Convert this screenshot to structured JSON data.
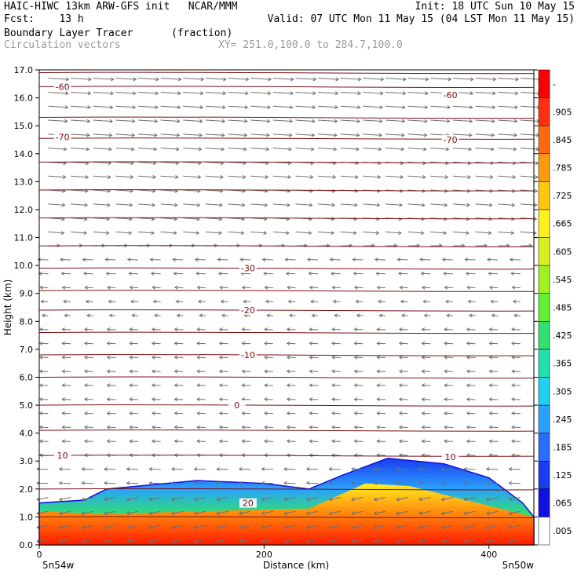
{
  "header": {
    "line1_left": "HAIC-HIWC 13km ARW-GFS init   NCAR/MMM",
    "line1_right": "Init: 18 UTC Sun 10 May 15",
    "line2_left": "Fcst:    13 h",
    "line2_right": "Valid: 07 UTC Mon 11 May 15 (04 LST Mon 11 May 15)",
    "line3_left": "Boundary Layer Tracer",
    "line3_mid": "(fraction)",
    "line4_left": "Circulation vectors",
    "line4_mid": "XY= 251.0,100.0 to 284.7,100.0"
  },
  "chart_data": {
    "type": "heatmap",
    "ylabel": "Height (km)",
    "xlabel": "Distance (km)",
    "x_left_label": "5n54w",
    "x_right_label": "5n50w",
    "xlim": [
      0,
      440
    ],
    "ylim": [
      0,
      17
    ],
    "x_ticks": [
      "0",
      "200",
      "400"
    ],
    "y_ticks": [
      "0.0",
      "1.0",
      "2.0",
      "3.0",
      "4.0",
      "5.0",
      "6.0",
      "7.0",
      "8.0",
      "9.0",
      "10.0",
      "11.0",
      "12.0",
      "13.0",
      "14.0",
      "15.0",
      "16.0",
      "17.0"
    ],
    "temperature_contours": [
      {
        "value": -60,
        "label": "-60",
        "heights_km": [
          16.4,
          16.3,
          16.2,
          16.1,
          16.2
        ]
      },
      {
        "value": -70,
        "label": "-70",
        "heights_km": [
          14.6,
          14.55,
          14.5,
          14.5,
          14.55
        ]
      },
      {
        "value": -30,
        "label": "-30",
        "heights_km": [
          9.9,
          9.9,
          9.95,
          9.9,
          9.9
        ]
      },
      {
        "value": -20,
        "label": "-20",
        "heights_km": [
          8.4,
          8.4,
          8.45,
          8.4,
          8.4
        ]
      },
      {
        "value": -10,
        "label": "-10",
        "heights_km": [
          6.8,
          6.8,
          6.85,
          6.8,
          6.8
        ]
      },
      {
        "value": 0,
        "label": "0",
        "heights_km": [
          5.0,
          5.0,
          5.1,
          5.0,
          5.0
        ]
      },
      {
        "value": 10,
        "label": "10",
        "heights_km": [
          3.2,
          3.2,
          3.1,
          3.15,
          3.1
        ]
      },
      {
        "value": 20,
        "label": "20",
        "heights_km": [
          1.5,
          1.45,
          1.0,
          0.95,
          0.9
        ]
      }
    ],
    "tracer_region": {
      "outer_top_km": [
        [
          0,
          1.5
        ],
        [
          40,
          1.6
        ],
        [
          60,
          2.0
        ],
        [
          140,
          2.3
        ],
        [
          200,
          2.2
        ],
        [
          240,
          2.0
        ],
        [
          270,
          2.5
        ],
        [
          310,
          3.1
        ],
        [
          360,
          2.9
        ],
        [
          400,
          2.4
        ],
        [
          430,
          1.5
        ],
        [
          440,
          1.0
        ]
      ],
      "core_top_km": [
        [
          0,
          1.2
        ],
        [
          60,
          1.1
        ],
        [
          140,
          1.2
        ],
        [
          240,
          1.3
        ],
        [
          290,
          2.2
        ],
        [
          330,
          2.1
        ],
        [
          380,
          1.6
        ],
        [
          420,
          1.2
        ],
        [
          440,
          1.0
        ]
      ]
    },
    "colorbar": {
      "labels": [
        ".005",
        ".065",
        ".125",
        ".185",
        ".245",
        ".305",
        ".365",
        ".425",
        ".485",
        ".545",
        ".605",
        ".665",
        ".725",
        ".785",
        ".845",
        ".905",
        "-"
      ],
      "colors": [
        "#ffffff",
        "#1010e0",
        "#1a3cf0",
        "#2a6cff",
        "#2aa0ff",
        "#20d0f0",
        "#20e0b0",
        "#30e070",
        "#60f030",
        "#a0f020",
        "#d8f020",
        "#fff020",
        "#ffc810",
        "#ff9a10",
        "#ff6a10",
        "#ff3010",
        "#ff0000"
      ]
    },
    "vector_color": "#707070",
    "contour_color": "#7a1010"
  }
}
